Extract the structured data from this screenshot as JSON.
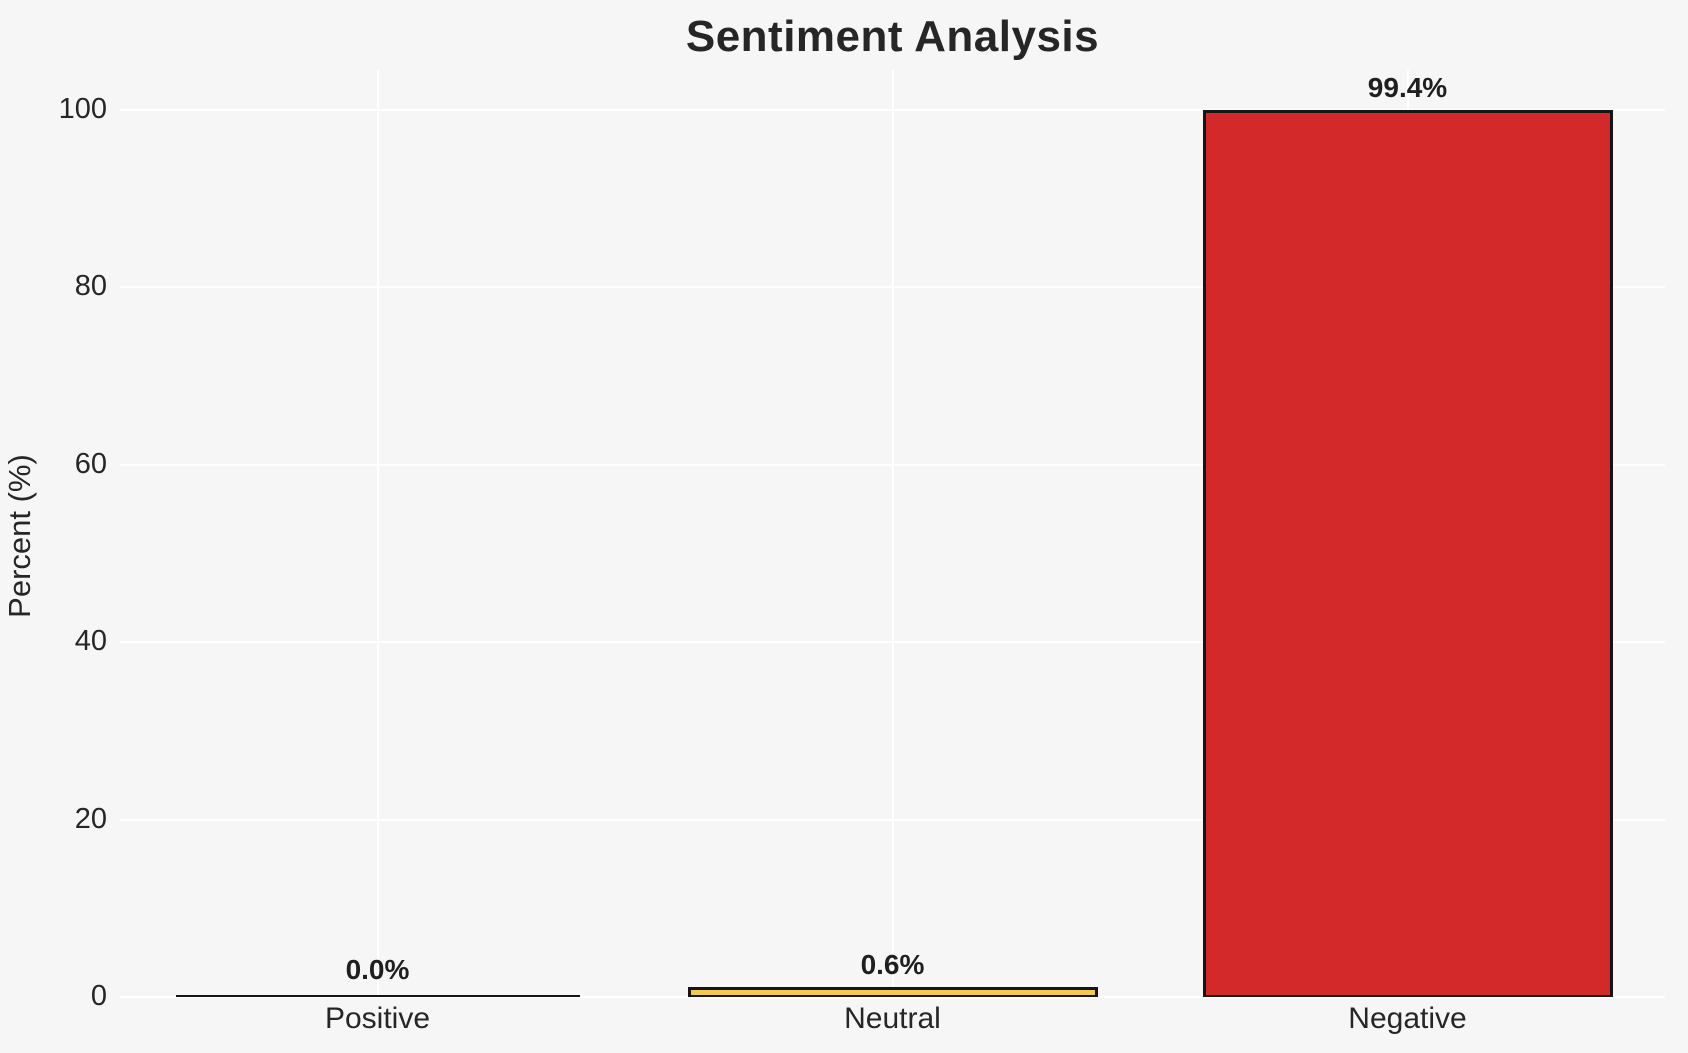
{
  "chart_data": {
    "type": "bar",
    "title": "Sentiment Analysis",
    "xlabel": "",
    "ylabel": "Percent (%)",
    "categories": [
      "Positive",
      "Neutral",
      "Negative"
    ],
    "values": [
      0.0,
      0.6,
      99.4
    ],
    "value_labels": [
      "0.0%",
      "0.6%",
      "99.4%"
    ],
    "bar_colors": [
      "transparent",
      "#f1ca4f",
      "#d4292a"
    ],
    "bar_edge_color": "#151515",
    "ylim": [
      0,
      104.5
    ],
    "yticks": [
      0,
      20,
      40,
      60,
      80,
      100
    ],
    "grid": "on",
    "grid_color": "#ffffff",
    "background_color": "#f6f6f7",
    "legend": "none"
  }
}
